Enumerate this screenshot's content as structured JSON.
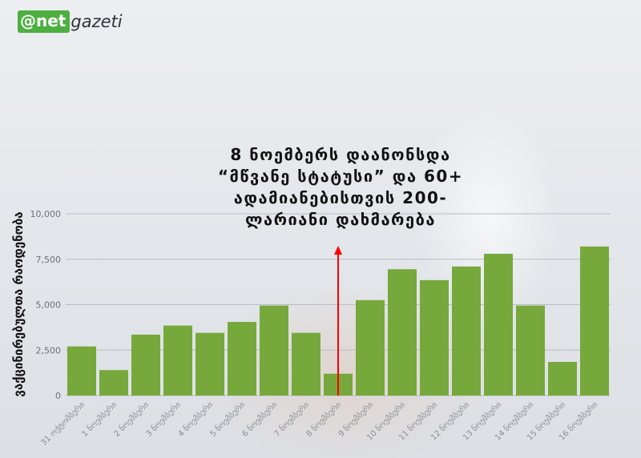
{
  "logo": {
    "badge": "@net",
    "text": "gazeti"
  },
  "chart_data": {
    "type": "bar",
    "ylabel": "ვაქცინირებულთა რაოდენობა",
    "ylim": [
      0,
      10000
    ],
    "yticks": [
      0,
      2500,
      5000,
      7500,
      10000
    ],
    "ytick_labels": [
      "0",
      "2,500",
      "5,000",
      "7,500",
      "10,000"
    ],
    "categories": [
      "31 ოქტომბერი",
      "1 ნოემბერი",
      "2 ნოემბერი",
      "3 ნოემბერი",
      "4 ნოემბერი",
      "5 ნოემბერი",
      "6 ნოემბერი",
      "7 ნოემბერი",
      "8 ნოემბერი",
      "9 ნოემბერი",
      "10 ნოემბერი",
      "11 ნოემბერი",
      "12 ნოემბერი",
      "13 ნოემბერი",
      "14 ნოემბერი",
      "15 ნოემბერი",
      "16 ნოემბერი"
    ],
    "values": [
      2700,
      1400,
      3350,
      3850,
      3450,
      4050,
      4950,
      3450,
      1200,
      5250,
      6950,
      6350,
      7100,
      7800,
      4950,
      1850,
      8200
    ],
    "bar_color": "#76a83c",
    "annotation": {
      "text": "8 ნოემბერს დაანონსდა “მწვანე სტატუსი” და 60+ ადამიანებისთვის 200-ლარიანი დახმარება",
      "category": "8 ნოემბერი",
      "arrow_color": "#ff0000"
    }
  }
}
